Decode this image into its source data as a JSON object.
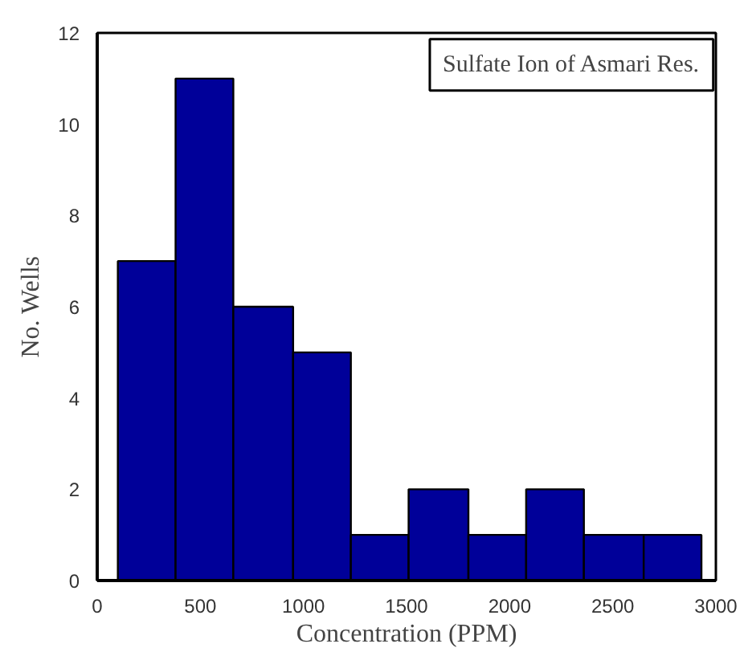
{
  "chart_data": {
    "type": "histogram",
    "title": "Sulfate Ion of Asmari Res.",
    "xlabel": "Concentration (PPM)",
    "ylabel": "No. Wells",
    "bins": [
      100,
      380,
      660,
      950,
      1230,
      1510,
      1800,
      2080,
      2360,
      2650,
      2930
    ],
    "values": [
      7,
      11,
      6,
      5,
      1,
      2,
      1,
      2,
      1,
      1
    ],
    "color": "#000099",
    "xlim": [
      0,
      3000
    ],
    "xticks": [
      0,
      500,
      1000,
      1500,
      2000,
      2500,
      3000
    ],
    "ylim": [
      0,
      12
    ],
    "yticks": [
      0,
      2,
      4,
      6,
      8,
      10,
      12
    ],
    "grid": false
  }
}
